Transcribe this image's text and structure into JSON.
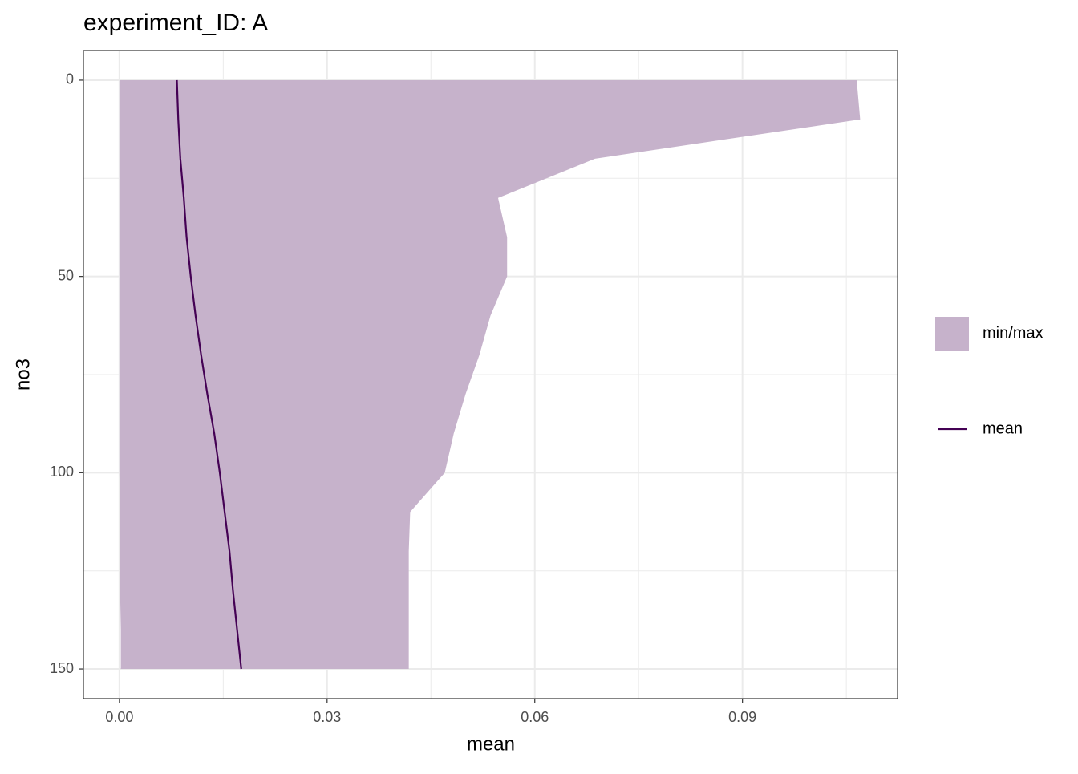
{
  "chart_data": {
    "type": "ribbon",
    "title": "experiment_ID: A",
    "x_label": "mean",
    "y_label": "no3",
    "depth": [
      0,
      10,
      20,
      30,
      40,
      50,
      60,
      70,
      80,
      90,
      100,
      110,
      120,
      130,
      140,
      150
    ],
    "series": [
      {
        "name": "min/max",
        "color": "#c6b2cb",
        "lower": [
          0,
          0,
          0,
          0,
          0,
          0,
          0,
          0,
          0,
          0,
          0,
          0.0001,
          0.0001,
          0.0001,
          0.0002,
          0.0002
        ],
        "upper": [
          0.1065,
          0.107,
          0.0687,
          0.0547,
          0.056,
          0.056,
          0.0536,
          0.052,
          0.05,
          0.0483,
          0.047,
          0.042,
          0.0418,
          0.0418,
          0.0418,
          0.0418
        ]
      },
      {
        "name": "mean",
        "color": "#440154",
        "values": [
          0.0083,
          0.0085,
          0.0088,
          0.0093,
          0.0097,
          0.0103,
          0.011,
          0.0118,
          0.0127,
          0.0137,
          0.0145,
          0.0152,
          0.0159,
          0.0164,
          0.017,
          0.0176
        ]
      }
    ],
    "xlim": [
      -0.0052,
      0.1124
    ],
    "ylim": [
      -7.55,
      157.55
    ],
    "y_reversed": true,
    "xticks": [
      {
        "value": 0,
        "label": "0.00"
      },
      {
        "value": 0.03,
        "label": "0.03"
      },
      {
        "value": 0.06,
        "label": "0.06"
      },
      {
        "value": 0.09,
        "label": "0.09"
      }
    ],
    "yticks": [
      0,
      50,
      100,
      150
    ],
    "x_minor_grid": [
      0.015,
      0.045,
      0.075,
      0.105
    ],
    "y_minor_grid": [
      25,
      75,
      125
    ],
    "grid": true,
    "legend": "right"
  }
}
